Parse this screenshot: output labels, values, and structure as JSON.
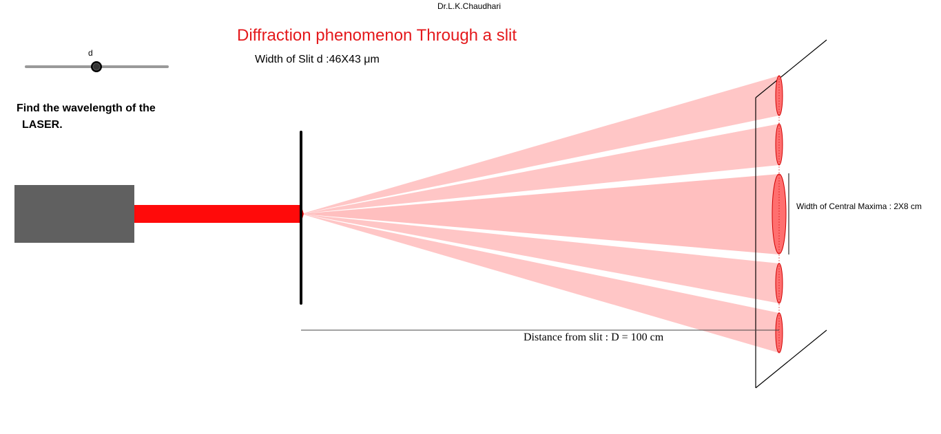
{
  "author": "Dr.L.K.Chaudhari",
  "title": "Diffraction phenomenon Through a slit",
  "slit_width_text": "Width of Slit d :46X43 μm",
  "slider": {
    "label": "d"
  },
  "task": {
    "line1": "Find the wavelength of the",
    "line2": "LASER."
  },
  "central_maxima_text": "Width of Central Maxima : 2X8 cm",
  "distance_text": "Distance from slit : D = 100 cm",
  "colors": {
    "title": "#e4191c",
    "laser_body": "#606060",
    "laser_beam": "#ff0a0a",
    "fringe_fill": "#ffbcbc",
    "fringe_ellipse": "#ff6f6f",
    "slider_track": "#999999"
  }
}
